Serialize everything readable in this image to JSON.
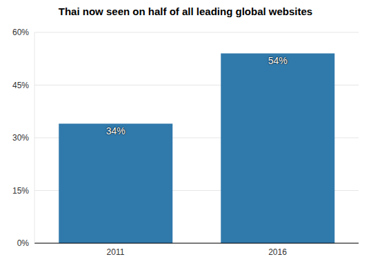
{
  "chart_data": {
    "type": "bar",
    "title": "Thai now seen on half of all leading global websites",
    "categories": [
      "2011",
      "2016"
    ],
    "values": [
      34,
      54
    ],
    "value_labels": [
      "34%",
      "54%"
    ],
    "color": "#3079ab",
    "ylim": [
      0,
      60
    ],
    "yticks": [
      {
        "value": 0,
        "label": "0%"
      },
      {
        "value": 15,
        "label": "15%"
      },
      {
        "value": 30,
        "label": "30%"
      },
      {
        "value": 45,
        "label": "45%"
      },
      {
        "value": 60,
        "label": "60%"
      }
    ],
    "grid": true,
    "data_labels": true
  }
}
